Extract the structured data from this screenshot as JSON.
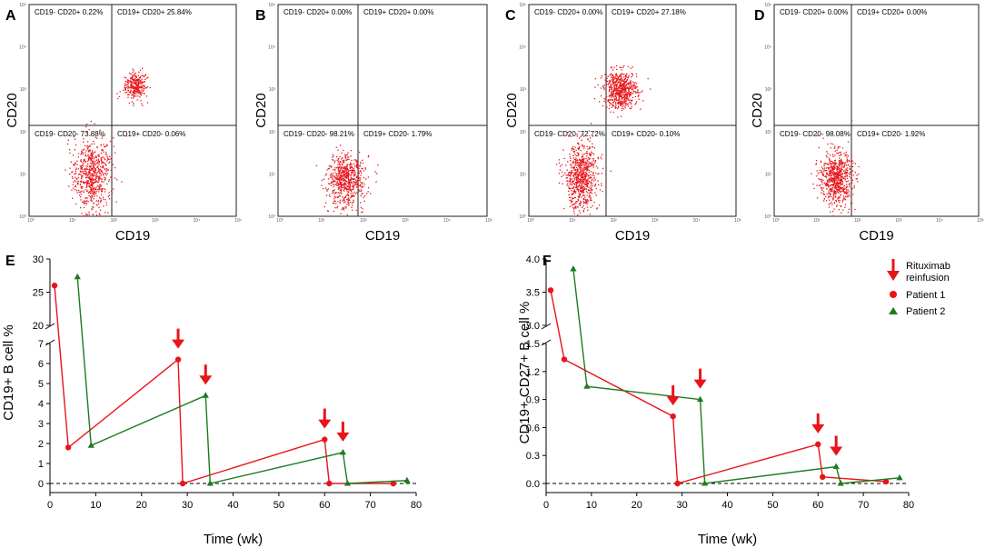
{
  "colors": {
    "red": "#e8141a",
    "green": "#1f7a1f",
    "dot": "#e8141a"
  },
  "chart_data": [
    {
      "panel": "A",
      "type": "scatter",
      "xlabel": "CD19",
      "ylabel": "CD20",
      "quadrants": [
        "CD19- CD20+ 0.22%",
        "CD19+ CD20+ 25.84%",
        "CD19- CD20- 73.88%",
        "CD19+ CD20- 0.06%"
      ],
      "clusters": [
        {
          "x": 1.5,
          "y": 1.0,
          "sx": 0.22,
          "sy": 0.45,
          "n": 650
        },
        {
          "x": 2.55,
          "y": 3.1,
          "sx": 0.13,
          "sy": 0.17,
          "n": 280
        }
      ],
      "x_ticks": [
        "10⁰",
        "10¹",
        "10²",
        "10³",
        "10⁴",
        "10⁵"
      ],
      "y_ticks": [
        "10⁵",
        "10⁴",
        "10³",
        "10²",
        "10¹",
        "10⁰"
      ]
    },
    {
      "panel": "B",
      "type": "scatter",
      "xlabel": "CD19",
      "ylabel": "CD20",
      "quadrants": [
        "CD19- CD20+ 0.00%",
        "CD19+ CD20+ 0.00%",
        "CD19- CD20- 98.21%",
        "CD19+ CD20- 1.79%"
      ],
      "clusters": [
        {
          "x": 1.6,
          "y": 0.85,
          "sx": 0.22,
          "sy": 0.3,
          "n": 620
        }
      ],
      "x_ticks": [
        "10⁰",
        "10¹",
        "10²",
        "10³",
        "10⁴",
        "10⁵"
      ],
      "y_ticks": [
        "10⁵",
        "10⁴",
        "10³",
        "10²",
        "10¹",
        "10⁰"
      ]
    },
    {
      "panel": "C",
      "type": "scatter",
      "xlabel": "CD19",
      "ylabel": "CD20",
      "quadrants": [
        "CD19- CD20+ 0.00%",
        "CD19+ CD20+ 27.18%",
        "CD19- CD20- 72.72%",
        "CD19+ CD20- 0.10%"
      ],
      "clusters": [
        {
          "x": 1.25,
          "y": 0.95,
          "sx": 0.2,
          "sy": 0.38,
          "n": 700
        },
        {
          "x": 2.2,
          "y": 3.0,
          "sx": 0.2,
          "sy": 0.22,
          "n": 620
        }
      ],
      "x_ticks": [
        "10⁰",
        "10¹",
        "10²",
        "10³",
        "10⁴",
        "10⁵"
      ],
      "y_ticks": [
        "10⁵",
        "10⁴",
        "10³",
        "10²",
        "10¹",
        "10⁰"
      ]
    },
    {
      "panel": "D",
      "type": "scatter",
      "xlabel": "CD19",
      "ylabel": "CD20",
      "quadrants": [
        "CD19- CD20+ 0.00%",
        "CD19+ CD20+ 0.00%",
        "CD19- CD20- 98.08%",
        "CD19+ CD20- 1.92%"
      ],
      "clusters": [
        {
          "x": 1.5,
          "y": 0.9,
          "sx": 0.2,
          "sy": 0.32,
          "n": 680
        }
      ],
      "x_ticks": [
        "10⁰",
        "10¹",
        "10²",
        "10³",
        "10⁴",
        "10⁵"
      ],
      "y_ticks": [
        "10⁵",
        "10⁴",
        "10³",
        "10²",
        "10¹",
        "10⁰"
      ]
    },
    {
      "panel": "E",
      "type": "line",
      "xlabel": "Time (wk)",
      "ylabel": "CD19+ B cell %",
      "xlim": [
        0,
        80
      ],
      "x_ticks": [
        0,
        10,
        20,
        30,
        40,
        50,
        60,
        70,
        80
      ],
      "y_ticks_low": [
        0,
        1,
        2,
        3,
        4,
        5,
        6,
        7
      ],
      "y_ticks_high": [
        20,
        25,
        30
      ],
      "series": [
        {
          "name": "Patient 1",
          "marker": "circle",
          "x": [
            1,
            4,
            28,
            29,
            60,
            61,
            75
          ],
          "y": [
            26,
            1.8,
            6.2,
            0,
            2.2,
            0,
            0
          ]
        },
        {
          "name": "Patient 2",
          "marker": "triangle",
          "x": [
            6,
            9,
            34,
            35,
            64,
            65,
            78
          ],
          "y": [
            27.3,
            1.9,
            4.4,
            0,
            1.55,
            0,
            0.15
          ]
        }
      ],
      "arrows_x": [
        28,
        34,
        60,
        64
      ]
    },
    {
      "panel": "F",
      "type": "line",
      "xlabel": "Time (wk)",
      "ylabel": "CD19+ CD27+ B cell %",
      "xlim": [
        0,
        80
      ],
      "x_ticks": [
        0,
        10,
        20,
        30,
        40,
        50,
        60,
        70,
        80
      ],
      "y_ticks_low": [
        "0.0",
        "0.3",
        "0.6",
        "0.9",
        "1.2",
        "1.5"
      ],
      "y_ticks_high": [
        "3.0",
        "3.5",
        "4.0"
      ],
      "series": [
        {
          "name": "Patient 1",
          "marker": "circle",
          "x": [
            1,
            4,
            28,
            29,
            60,
            61,
            75
          ],
          "y": [
            3.53,
            1.33,
            0.72,
            0,
            0.42,
            0.07,
            0.02
          ]
        },
        {
          "name": "Patient 2",
          "marker": "triangle",
          "x": [
            6,
            9,
            34,
            35,
            64,
            65,
            78
          ],
          "y": [
            3.85,
            1.04,
            0.9,
            0,
            0.18,
            0,
            0.06
          ]
        }
      ],
      "arrows_x": [
        28,
        34,
        60,
        64
      ]
    }
  ],
  "legend": {
    "arrow_label_line1": "Rituximab",
    "arrow_label_line2": "reinfusion",
    "patient1": "Patient 1",
    "patient2": "Patient 2"
  }
}
